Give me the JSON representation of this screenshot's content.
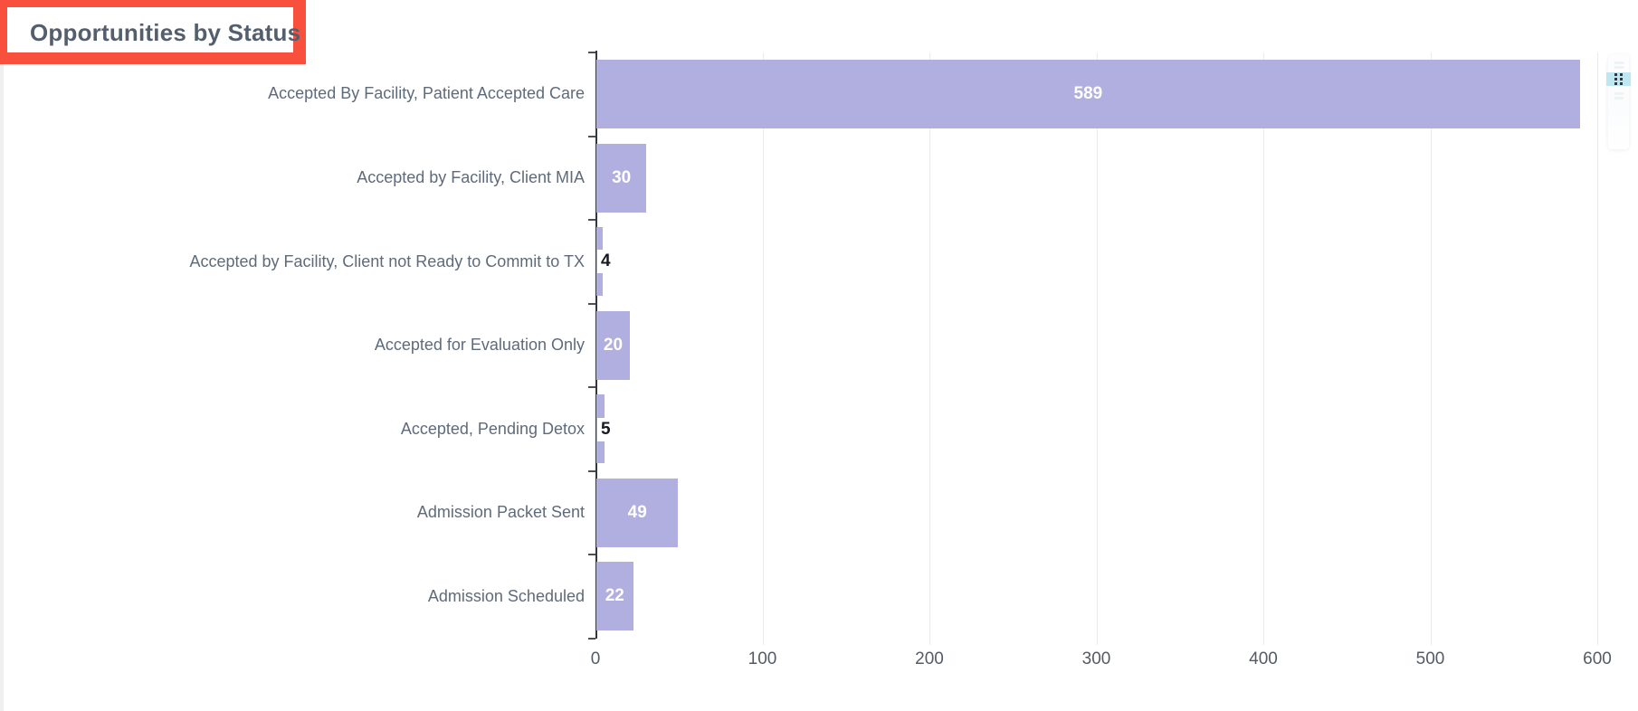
{
  "widget": {
    "title": "Opportunities by Status"
  },
  "chart_data": {
    "type": "bar",
    "orientation": "horizontal",
    "title": "Opportunities by Status",
    "categories": [
      "Accepted By Facility, Patient Accepted Care",
      "Accepted by Facility, Client MIA",
      "Accepted by Facility, Client not Ready to Commit to TX",
      "Accepted for Evaluation Only",
      "Accepted, Pending Detox",
      "Admission Packet Sent",
      "Admission Scheduled"
    ],
    "values": [
      589,
      30,
      4,
      20,
      5,
      49,
      22
    ],
    "data_labels": [
      "589",
      "30",
      "4",
      "20",
      "5",
      "49",
      "22"
    ],
    "x_ticks": [
      0,
      100,
      200,
      300,
      400,
      500,
      600
    ],
    "xlim": [
      0,
      600
    ],
    "xlabel": "",
    "ylabel": "",
    "grid": "vertical",
    "legend": false,
    "colors": {
      "bar": "#b1aee0",
      "bar_label_inside": "#ffffff",
      "bar_label_outside": "#16191f",
      "category_label": "#5f6b7a",
      "tick_label": "#545b64",
      "title": "#545f6e",
      "axis_line": "#33383f",
      "tick_mark": "#4b5158",
      "gridline": "#e9ebee"
    }
  },
  "annotation": {
    "highlight_color": "#f8503c"
  },
  "icons": {
    "drag_handle": "drag-dots-icon",
    "drag_handle_accent": "#bfe7f1",
    "drag_dot_color": "#2f3740"
  }
}
